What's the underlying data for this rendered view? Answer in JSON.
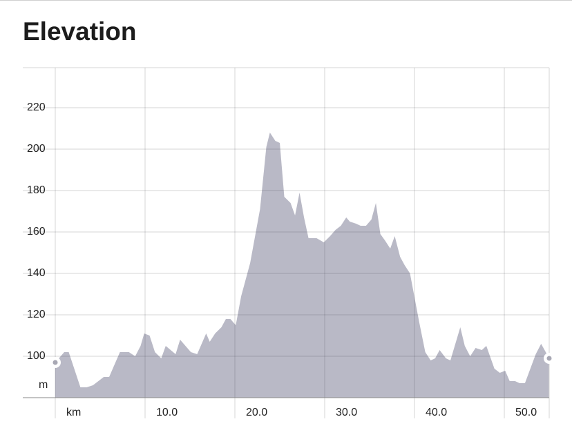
{
  "chart_data": {
    "type": "area",
    "title": "Elevation",
    "y_label": "m",
    "color": "#b9b9c6",
    "x": [
      0,
      1.0,
      1.5,
      2.8,
      3.5,
      4.2,
      5.4,
      6.0,
      7.2,
      8.2,
      8.9,
      9.5,
      9.9,
      10.5,
      11.1,
      11.8,
      12.3,
      13.4,
      13.9,
      15.1,
      15.8,
      16.8,
      17.2,
      17.8,
      18.5,
      19.0,
      19.5,
      20.1,
      20.7,
      21.7,
      22.8,
      23.5,
      23.9,
      24.5,
      25.0,
      25.5,
      26.2,
      26.7,
      27.2,
      27.7,
      28.2,
      29.1,
      29.9,
      30.6,
      31.2,
      31.8,
      32.4,
      32.8,
      33.5,
      34.0,
      34.6,
      35.2,
      35.7,
      36.2,
      36.7,
      37.3,
      37.8,
      38.4,
      38.9,
      39.5,
      40.5,
      41.2,
      41.8,
      42.3,
      42.8,
      43.5,
      44.0,
      45.1,
      45.6,
      46.2,
      46.8,
      47.5,
      48.0,
      48.9,
      49.5,
      50.1,
      50.6,
      51.2,
      51.7,
      52.3,
      52.9,
      53.5,
      54.1,
      55.0
    ],
    "values": [
      97,
      102,
      102,
      85,
      85,
      86,
      90,
      90,
      102,
      102,
      100,
      105,
      111,
      110,
      102,
      99,
      105,
      101,
      108,
      102,
      101,
      111,
      107,
      111,
      114,
      118,
      118,
      115,
      129,
      145,
      171,
      201,
      208,
      204,
      203,
      177,
      174,
      168,
      179,
      167,
      157,
      157,
      155,
      158,
      161,
      163,
      167,
      165,
      164,
      163,
      163,
      166,
      174,
      159,
      156,
      152,
      158,
      148,
      144,
      140,
      117,
      102,
      98,
      99,
      103,
      99,
      98,
      114,
      105,
      100,
      104,
      103,
      105,
      94,
      92,
      93,
      88,
      88,
      87,
      87,
      94,
      101,
      106,
      99
    ],
    "xlim": [
      0,
      55
    ],
    "ylim": [
      80,
      240
    ],
    "xticks": [
      {
        "value": 0,
        "label": "km"
      },
      {
        "value": 10,
        "label": "10.0"
      },
      {
        "value": 20,
        "label": "20.0"
      },
      {
        "value": 30,
        "label": "30.0"
      },
      {
        "value": 40,
        "label": "40.0"
      },
      {
        "value": 50,
        "label": "50.0"
      }
    ],
    "yticks": [
      100,
      120,
      140,
      160,
      180,
      200,
      220
    ],
    "grid": true
  }
}
